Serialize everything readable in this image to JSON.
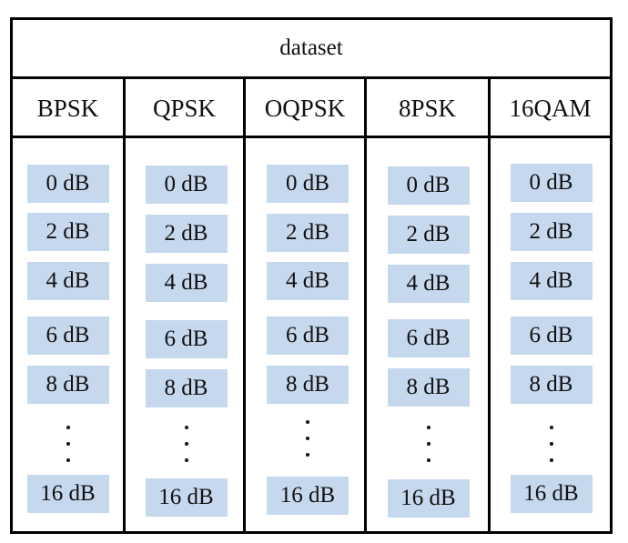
{
  "title": "dataset",
  "columns": [
    {
      "name": "BPSK",
      "cells": [
        "0 dB",
        "2 dB",
        "4 dB",
        "6 dB",
        "8 dB"
      ],
      "last": "16 dB"
    },
    {
      "name": "QPSK",
      "cells": [
        "0 dB",
        "2 dB",
        "4 dB",
        "6 dB",
        "8 dB"
      ],
      "last": "16 dB"
    },
    {
      "name": "OQPSK",
      "cells": [
        "0 dB",
        "2 dB",
        "4 dB",
        "6 dB",
        "8 dB"
      ],
      "last": "16 dB"
    },
    {
      "name": "8PSK",
      "cells": [
        "0 dB",
        "2 dB",
        "4 dB",
        "6 dB",
        "8 dB"
      ],
      "last": "16 dB"
    },
    {
      "name": "16QAM",
      "cells": [
        "0 dB",
        "2 dB",
        "4 dB",
        "6 dB",
        "8 dB"
      ],
      "last": "16 dB"
    }
  ],
  "colors": {
    "cell_fill": "#c6d8ee",
    "border": "#000000"
  }
}
